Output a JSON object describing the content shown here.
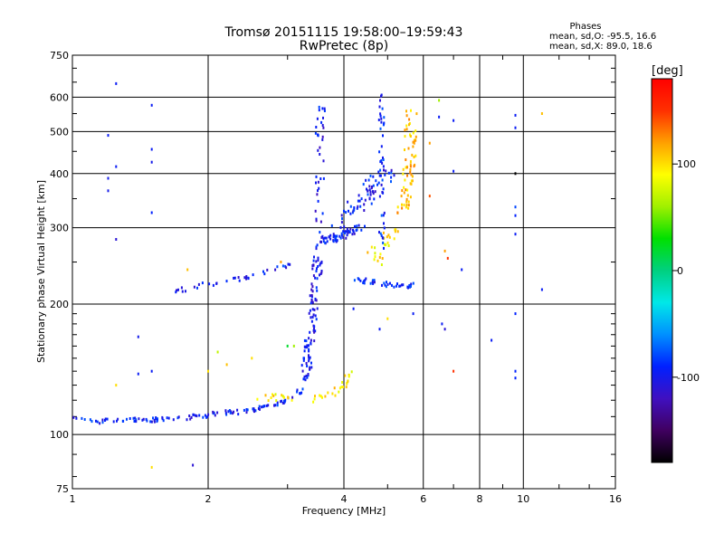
{
  "chart_data": {
    "type": "scatter",
    "title": "Tromsø 20151115 19:58:00–19:59:43",
    "subtitle": "RwPretec (8p)",
    "stats": {
      "heading": "Phases",
      "line1": "mean, sd,O: -95.5, 16.6",
      "line2": "mean, sd,X:  89.0, 18.6"
    },
    "xlabel": "Frequency [MHz]",
    "ylabel": "Stationary phase Virtual Height [km]",
    "xscale": "log",
    "yscale": "log",
    "xlim": [
      1,
      16
    ],
    "ylim": [
      75,
      750
    ],
    "xticks": [
      1,
      2,
      4,
      6,
      8,
      10,
      16
    ],
    "xtick_labels": [
      "1",
      "2",
      "4",
      "6",
      "8",
      "10",
      "16"
    ],
    "xgrid": [
      2,
      4,
      6,
      8,
      10
    ],
    "minor_x": [
      3,
      5,
      7,
      9,
      12,
      14
    ],
    "yticks": [
      75,
      100,
      200,
      300,
      400,
      500,
      600,
      750
    ],
    "ytick_labels": [
      "75",
      "100",
      "200",
      "300",
      "400",
      "500",
      "600",
      "750"
    ],
    "ygrid": [
      100,
      200,
      300,
      400,
      500,
      600
    ],
    "minor_y": [
      80,
      90,
      110,
      120,
      130,
      140,
      150,
      160,
      170,
      180,
      190,
      250,
      350,
      450,
      550,
      650,
      700
    ],
    "grid": true,
    "colorbar": {
      "label": "[deg]",
      "range": [
        -180,
        180
      ],
      "ticks": [
        100,
        0,
        -100
      ],
      "tick_labels": [
        "100",
        "0",
        "-100"
      ],
      "colormap": [
        "#000000",
        "#400060",
        "#4010c0",
        "#0020ff",
        "#0090ff",
        "#00e8e8",
        "#00d080",
        "#00e000",
        "#a0f000",
        "#ffff00",
        "#ffa000",
        "#ff3000",
        "#ff0000"
      ]
    },
    "traces": [
      {
        "name": "low_o",
        "x": [
          1.0,
          1.15,
          1.3,
          1.5,
          1.7,
          1.9,
          2.1,
          2.4,
          2.7,
          3.0,
          3.2,
          3.35
        ],
        "y": [
          110,
          107,
          108,
          108,
          109,
          110,
          112,
          113,
          116,
          120,
          126,
          140
        ],
        "phase": -95,
        "jitter": 0.012,
        "count": 130
      },
      {
        "name": "low_x",
        "x": [
          2.4,
          2.8,
          3.2,
          3.6,
          4.0,
          4.1
        ],
        "y": [
          120,
          122,
          120,
          122,
          128,
          138
        ],
        "phase": 95,
        "jitter": 0.018,
        "count": 40
      },
      {
        "name": "mid_flat",
        "x": [
          1.7,
          2.0,
          2.4,
          2.8,
          3.1
        ],
        "y": [
          215,
          222,
          230,
          240,
          248
        ],
        "phase": -95,
        "jitter": 0.012,
        "count": 35
      },
      {
        "name": "f1_rise",
        "x": [
          3.3,
          3.4,
          3.5,
          3.55
        ],
        "y": [
          140,
          180,
          250,
          600
        ],
        "phase": -100,
        "jitter": 0.025,
        "count": 130
      },
      {
        "name": "f1_right",
        "x": [
          3.5,
          3.7,
          3.9,
          4.1,
          4.4
        ],
        "y": [
          280,
          282,
          285,
          290,
          300
        ],
        "phase": -95,
        "jitter": 0.02,
        "count": 55
      },
      {
        "name": "f2_upper",
        "x": [
          3.9,
          4.2,
          4.5,
          4.8,
          5.0
        ],
        "y": [
          300,
          330,
          360,
          380,
          420
        ],
        "phase": -95,
        "jitter": 0.05,
        "count": 70
      },
      {
        "name": "o_band_low",
        "x": [
          4.2,
          4.6,
          5.0,
          5.4,
          5.7
        ],
        "y": [
          228,
          225,
          222,
          220,
          222
        ],
        "phase": -90,
        "jitter": 0.012,
        "count": 40
      },
      {
        "name": "x_branch",
        "x": [
          5.4,
          5.55,
          5.6,
          5.65
        ],
        "y": [
          320,
          380,
          450,
          560
        ],
        "phase": 110,
        "jitter": 0.03,
        "count": 70
      },
      {
        "name": "f2_mid",
        "x": [
          4.6,
          4.9,
          5.2
        ],
        "y": [
          250,
          270,
          300
        ],
        "phase": 95,
        "jitter": 0.04,
        "count": 25
      },
      {
        "name": "cusp_vert",
        "x": [
          4.85,
          4.85,
          4.85
        ],
        "y": [
          260,
          400,
          610
        ],
        "phase": -90,
        "jitter": 0.015,
        "count": 40
      }
    ],
    "scatter_noise": [
      {
        "x": 1.25,
        "y": 645,
        "phase": -95
      },
      {
        "x": 1.5,
        "y": 575,
        "phase": -95
      },
      {
        "x": 1.5,
        "y": 455,
        "phase": -95
      },
      {
        "x": 1.5,
        "y": 425,
        "phase": -100
      },
      {
        "x": 1.5,
        "y": 325,
        "phase": -90
      },
      {
        "x": 1.2,
        "y": 490,
        "phase": -95
      },
      {
        "x": 1.25,
        "y": 415,
        "phase": -95
      },
      {
        "x": 1.2,
        "y": 390,
        "phase": -100
      },
      {
        "x": 1.2,
        "y": 365,
        "phase": -100
      },
      {
        "x": 1.25,
        "y": 282,
        "phase": -110
      },
      {
        "x": 1.4,
        "y": 168,
        "phase": -100
      },
      {
        "x": 1.5,
        "y": 140,
        "phase": -95
      },
      {
        "x": 1.4,
        "y": 138,
        "phase": -95
      },
      {
        "x": 1.85,
        "y": 85,
        "phase": -110
      },
      {
        "x": 1.5,
        "y": 84,
        "phase": 100
      },
      {
        "x": 1.25,
        "y": 130,
        "phase": 100
      },
      {
        "x": 6.5,
        "y": 540,
        "phase": -95
      },
      {
        "x": 6.5,
        "y": 590,
        "phase": 60
      },
      {
        "x": 7.0,
        "y": 530,
        "phase": -95
      },
      {
        "x": 6.2,
        "y": 470,
        "phase": 120
      },
      {
        "x": 6.2,
        "y": 355,
        "phase": 140
      },
      {
        "x": 7.0,
        "y": 405,
        "phase": -95
      },
      {
        "x": 9.6,
        "y": 545,
        "phase": -95
      },
      {
        "x": 9.6,
        "y": 510,
        "phase": -95
      },
      {
        "x": 9.6,
        "y": 400,
        "phase": -180
      },
      {
        "x": 9.6,
        "y": 335,
        "phase": -80
      },
      {
        "x": 9.6,
        "y": 320,
        "phase": -90
      },
      {
        "x": 9.6,
        "y": 290,
        "phase": -95
      },
      {
        "x": 9.6,
        "y": 190,
        "phase": -90
      },
      {
        "x": 9.6,
        "y": 140,
        "phase": -90
      },
      {
        "x": 9.6,
        "y": 135,
        "phase": -90
      },
      {
        "x": 11.0,
        "y": 550,
        "phase": 110
      },
      {
        "x": 11.0,
        "y": 216,
        "phase": -95
      },
      {
        "x": 8.5,
        "y": 165,
        "phase": -95
      },
      {
        "x": 6.7,
        "y": 265,
        "phase": 120
      },
      {
        "x": 6.8,
        "y": 255,
        "phase": 150
      },
      {
        "x": 6.6,
        "y": 180,
        "phase": -95
      },
      {
        "x": 6.7,
        "y": 175,
        "phase": -110
      },
      {
        "x": 7.0,
        "y": 140,
        "phase": 150
      },
      {
        "x": 7.3,
        "y": 240,
        "phase": -95
      },
      {
        "x": 5.7,
        "y": 190,
        "phase": -95
      },
      {
        "x": 4.8,
        "y": 175,
        "phase": -95
      },
      {
        "x": 5.0,
        "y": 185,
        "phase": 100
      },
      {
        "x": 4.2,
        "y": 195,
        "phase": -95
      },
      {
        "x": 2.5,
        "y": 150,
        "phase": 100
      },
      {
        "x": 3.0,
        "y": 160,
        "phase": 20
      },
      {
        "x": 3.1,
        "y": 160,
        "phase": 60
      },
      {
        "x": 2.2,
        "y": 145,
        "phase": 110
      },
      {
        "x": 2.0,
        "y": 140,
        "phase": 100
      },
      {
        "x": 1.8,
        "y": 240,
        "phase": 110
      },
      {
        "x": 2.9,
        "y": 250,
        "phase": 120
      },
      {
        "x": 2.1,
        "y": 155,
        "phase": 70
      }
    ]
  }
}
